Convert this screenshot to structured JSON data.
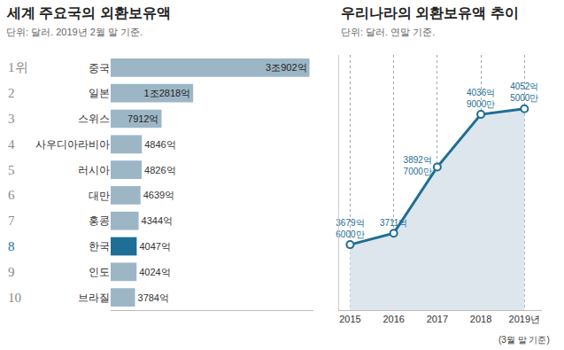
{
  "chart_data": [
    {
      "type": "bar",
      "orientation": "horizontal",
      "title": "세계 주요국의 외환보유액",
      "subtitle": "단위: 달러. 2019년 2월 말 기준.",
      "ranks": [
        "1위",
        "2",
        "3",
        "4",
        "5",
        "6",
        "7",
        "8",
        "9",
        "10"
      ],
      "categories": [
        "중국",
        "일본",
        "스위스",
        "사우디아라비아",
        "러시아",
        "대만",
        "홍콩",
        "한국",
        "인도",
        "브라질"
      ],
      "values": [
        30902,
        12818,
        7912,
        4846,
        4826,
        4639,
        4344,
        4047,
        4024,
        3784
      ],
      "value_labels": [
        "3조902억",
        "1조2818억",
        "7912억",
        "4846억",
        "4826억",
        "4639억",
        "4344억",
        "4047억",
        "4024억",
        "3784억"
      ],
      "colors": [
        "#9db6c6",
        "#9db6c6",
        "#9db6c6",
        "#9db6c6",
        "#9db6c6",
        "#9db6c6",
        "#9db6c6",
        "#1e6e96",
        "#9db6c6",
        "#9db6c6"
      ],
      "xlim": [
        0,
        31500
      ],
      "xticks": [],
      "data_labels": true,
      "tick_labels": "y",
      "grid": false
    },
    {
      "type": "line",
      "title": "우리나라의 외환보유액 추이",
      "subtitle": "단위: 달러. 연말 기준.",
      "categories": [
        "2015",
        "2016",
        "2017",
        "2018",
        "2019년"
      ],
      "note": "(3월 말 기준)",
      "values": [
        3679.6,
        3711,
        3892.7,
        4036.9,
        4052.5
      ],
      "value_labels": [
        "3679억 6000만",
        "3711억",
        "3892억 7000만",
        "4036억 9000만",
        "4052억 5000만"
      ],
      "color": "#1e6e96",
      "marker": "circle",
      "ylim": [
        3500,
        4200
      ],
      "yticks": [],
      "data_labels": true,
      "tick_labels": "x",
      "grid": true
    }
  ]
}
